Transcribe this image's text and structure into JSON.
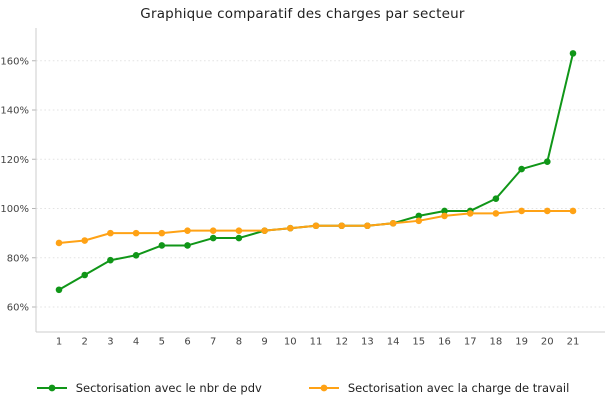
{
  "chart_data": {
    "type": "line",
    "title": "Graphique comparatif des charges par secteur",
    "x": [
      1,
      2,
      3,
      4,
      5,
      6,
      7,
      8,
      9,
      10,
      11,
      12,
      13,
      14,
      15,
      16,
      17,
      18,
      19,
      20,
      21
    ],
    "series": [
      {
        "name": "Sectorisation avec le nbr de pdv",
        "color": "#109618",
        "values": [
          67,
          73,
          79,
          81,
          85,
          85,
          88,
          88,
          91,
          92,
          93,
          93,
          93,
          94,
          97,
          99,
          99,
          104,
          116,
          119,
          163
        ]
      },
      {
        "name": "Sectorisation avec la charge de travail",
        "color": "#FFA215",
        "values": [
          86,
          87,
          90,
          90,
          90,
          91,
          91,
          91,
          91,
          92,
          93,
          93,
          93,
          94,
          95,
          97,
          98,
          98,
          99,
          99,
          99
        ]
      }
    ],
    "xlabel": "",
    "ylabel": "",
    "yticks": [
      60,
      80,
      100,
      120,
      140,
      160
    ],
    "ytick_suffix": "%",
    "ylim": [
      50,
      173
    ],
    "grid": "horizontal-dotted",
    "grid_color": "#e3e3e3",
    "axis_color": "#cccccc",
    "tick_label_color": "#444444",
    "legend_position": "bottom"
  }
}
